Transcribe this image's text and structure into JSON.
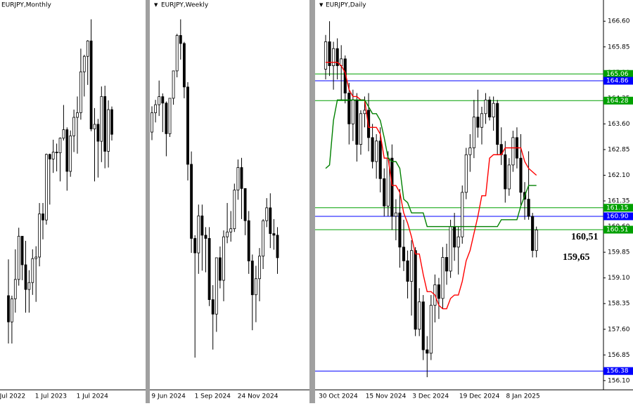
{
  "chart_data": [
    {
      "type": "candlestick",
      "title": "EURJPY,Monthly",
      "up_color": "#ffffff",
      "down_color": "#000000",
      "categories": [
        "1 Jul 2022",
        null,
        null,
        null,
        null,
        null,
        null,
        null,
        null,
        null,
        null,
        null,
        "1 Jul 2023",
        null,
        null,
        null,
        null,
        null,
        null,
        null,
        null,
        null,
        null,
        null,
        "1 Jul 2024",
        null,
        null,
        null,
        null,
        null,
        null
      ],
      "open": [
        139.6,
        136.2,
        139.2,
        141.7,
        147.3,
        143.6,
        140.4,
        141.3,
        144.4,
        144.6,
        150.2,
        149.4,
        157.9,
        157.3,
        158.2,
        158.1,
        160.0,
        161.1,
        155.7,
        160.3,
        162.7,
        163.3,
        168.6,
        170.6,
        172.6,
        161.2,
        161.8,
        159.6,
        165.4,
        158.3,
        163.7
      ],
      "high": [
        144.3,
        139.6,
        145.6,
        148.4,
        147.3,
        146.7,
        142.9,
        145.6,
        146.0,
        151.6,
        151.6,
        158.0,
        158.0,
        159.8,
        159.3,
        160.1,
        164.3,
        161.4,
        161.0,
        163.7,
        165.4,
        171.6,
        170.8,
        172.7,
        175.4,
        163.9,
        162.5,
        166.7,
        166.8,
        164.9,
        164.1
      ],
      "low": [
        133.4,
        133.4,
        137.4,
        140.9,
        141.6,
        137.4,
        137.4,
        139.7,
        138.8,
        143.4,
        146.9,
        148.8,
        151.4,
        155.5,
        155.7,
        154.4,
        159.7,
        153.2,
        155.0,
        158.2,
        158.0,
        162.4,
        165.4,
        166.9,
        160.9,
        154.4,
        154.9,
        156.9,
        156.1,
        156.2,
        159.7
      ],
      "close": [
        136.2,
        139.2,
        141.7,
        147.3,
        143.6,
        140.4,
        141.3,
        144.4,
        144.6,
        150.2,
        149.4,
        157.9,
        157.3,
        158.2,
        158.1,
        160.0,
        161.1,
        155.7,
        160.3,
        162.7,
        163.3,
        168.6,
        170.6,
        172.6,
        161.2,
        161.8,
        159.6,
        165.4,
        158.3,
        163.7,
        160.5
      ],
      "ylim": [
        127.4,
        177.9
      ]
    },
    {
      "type": "candlestick",
      "title": "EURJPY,Weekly",
      "up_color": "#ffffff",
      "down_color": "#000000",
      "categories": [
        null,
        null,
        null,
        null,
        "9 Jun 2024",
        null,
        null,
        null,
        null,
        null,
        null,
        null,
        null,
        null,
        null,
        null,
        "1 Sep 2024",
        null,
        null,
        null,
        null,
        null,
        null,
        null,
        null,
        null,
        null,
        null,
        "24 Nov 2024",
        null,
        null,
        null,
        null,
        null,
        null,
        null
      ],
      "open": [
        168.4,
        169.6,
        170.1,
        170.6,
        170.2,
        168.3,
        170.5,
        172.2,
        174.4,
        173.9,
        171.2,
        166.4,
        161.8,
        160.9,
        163.2,
        162.0,
        161.8,
        158.0,
        157.1,
        160.6,
        159.2,
        161.9,
        162.2,
        162.4,
        164.8,
        166.2,
        164.9,
        162.9,
        160.4,
        158.3,
        159.3,
        160.7,
        162.9,
        163.7,
        162.1,
        162.0
      ],
      "high": [
        170.0,
        170.4,
        171.6,
        170.8,
        170.3,
        170.5,
        172.2,
        174.5,
        175.4,
        174.0,
        171.5,
        167.2,
        162.0,
        163.9,
        163.9,
        162.5,
        162.5,
        158.9,
        160.6,
        161.3,
        162.3,
        164.0,
        163.5,
        165.2,
        166.7,
        166.8,
        164.9,
        163.5,
        160.8,
        160.1,
        161.2,
        163.0,
        164.3,
        164.6,
        163.0,
        162.5
      ],
      "low": [
        167.9,
        169.0,
        169.4,
        168.4,
        166.9,
        168.1,
        170.1,
        171.8,
        172.9,
        170.5,
        165.4,
        160.9,
        154.4,
        159.6,
        159.8,
        159.7,
        157.6,
        154.9,
        156.0,
        158.7,
        157.9,
        161.5,
        161.6,
        162.2,
        164.2,
        163.0,
        162.0,
        159.6,
        156.1,
        156.6,
        157.9,
        159.9,
        162.5,
        161.2,
        161.1,
        159.6
      ],
      "close": [
        169.6,
        170.1,
        170.6,
        170.2,
        168.3,
        170.5,
        172.2,
        174.4,
        173.9,
        171.2,
        166.4,
        161.8,
        160.9,
        163.2,
        162.0,
        161.8,
        158.0,
        157.1,
        160.6,
        159.2,
        161.9,
        162.2,
        162.4,
        164.8,
        166.2,
        164.9,
        162.9,
        160.4,
        158.3,
        159.3,
        160.7,
        162.9,
        163.7,
        162.1,
        162.0,
        160.6
      ],
      "ylim": [
        152.4,
        176.6
      ]
    },
    {
      "type": "candlestick",
      "title": "EURJPY,Daily",
      "up_color": "#ffffff",
      "down_color": "#000000",
      "categories": [
        null,
        null,
        "30 Oct 2024",
        null,
        null,
        null,
        null,
        null,
        null,
        null,
        null,
        null,
        null,
        null,
        "15 Nov 2024",
        null,
        null,
        null,
        null,
        null,
        null,
        null,
        null,
        null,
        null,
        null,
        "3 Dec 2024",
        null,
        null,
        null,
        null,
        null,
        null,
        null,
        null,
        null,
        null,
        null,
        "19 Dec 2024",
        null,
        null,
        null,
        null,
        null,
        null,
        null,
        null,
        null,
        null,
        null,
        "8 Jan 2025",
        null,
        null,
        null,
        null
      ],
      "open": [
        165.2,
        166.0,
        165.3,
        165.8,
        165.3,
        165.5,
        164.5,
        163.6,
        164.3,
        163.0,
        163.9,
        164.0,
        163.2,
        162.5,
        163.1,
        162.0,
        161.2,
        162.6,
        160.9,
        161.0,
        160.0,
        159.6,
        159.0,
        159.9,
        157.6,
        158.4,
        157.0,
        156.9,
        158.3,
        158.9,
        158.5,
        159.7,
        159.3,
        160.6,
        160.0,
        160.3,
        161.6,
        162.7,
        162.9,
        163.8,
        163.5,
        163.9,
        164.3,
        163.8,
        164.2,
        163.0,
        162.7,
        161.7,
        162.4,
        163.2,
        162.6,
        161.6,
        161.4,
        160.9,
        159.9
      ],
      "high": [
        166.2,
        166.6,
        166.0,
        166.1,
        165.9,
        165.6,
        164.8,
        164.6,
        164.5,
        164.0,
        164.4,
        164.5,
        163.6,
        163.3,
        163.5,
        162.3,
        162.8,
        163.0,
        161.4,
        161.7,
        160.8,
        159.9,
        160.2,
        160.0,
        158.8,
        158.6,
        157.4,
        158.6,
        159.2,
        159.1,
        160.0,
        160.1,
        160.8,
        161.0,
        160.6,
        161.8,
        162.9,
        163.3,
        164.3,
        164.6,
        164.1,
        164.5,
        164.4,
        164.4,
        164.3,
        163.5,
        163.1,
        162.6,
        163.4,
        163.5,
        163.3,
        161.9,
        162.8,
        161.0,
        160.6
      ],
      "low": [
        164.9,
        165.0,
        164.6,
        164.9,
        164.3,
        164.2,
        163.0,
        163.1,
        162.5,
        162.7,
        163.5,
        162.8,
        162.3,
        162.0,
        161.6,
        160.9,
        160.9,
        160.5,
        160.2,
        159.4,
        159.3,
        158.5,
        158.0,
        157.4,
        157.4,
        156.7,
        156.2,
        156.7,
        157.8,
        157.9,
        158.2,
        158.9,
        159.1,
        159.6,
        159.2,
        160.1,
        161.4,
        162.2,
        162.6,
        163.2,
        163.0,
        163.6,
        163.7,
        163.4,
        162.7,
        162.4,
        161.3,
        161.5,
        162.2,
        162.3,
        161.2,
        160.8,
        160.8,
        159.7,
        159.7
      ],
      "close": [
        166.0,
        165.3,
        165.8,
        165.3,
        165.5,
        164.5,
        163.6,
        164.3,
        163.0,
        163.9,
        164.0,
        163.2,
        162.5,
        163.1,
        162.0,
        161.2,
        162.6,
        160.9,
        161.0,
        160.0,
        159.6,
        159.0,
        159.9,
        157.6,
        158.4,
        157.0,
        156.9,
        158.3,
        158.9,
        158.5,
        159.7,
        159.3,
        160.6,
        160.0,
        160.3,
        161.6,
        162.7,
        162.9,
        163.8,
        163.5,
        163.9,
        164.3,
        163.8,
        164.2,
        163.0,
        162.7,
        161.7,
        162.4,
        163.2,
        162.6,
        161.6,
        161.4,
        160.9,
        159.9,
        160.5
      ],
      "lines": [
        {
          "color": "#ff0000",
          "values": [
            165.4,
            165.4,
            165.4,
            165.4,
            165.3,
            165.1,
            164.6,
            164.4,
            164.4,
            164.3,
            164.3,
            163.5,
            163.5,
            163.5,
            163.3,
            162.6,
            162.6,
            161.8,
            161.8,
            161.6,
            161.0,
            160.7,
            160.3,
            159.8,
            159.8,
            159.2,
            158.7,
            158.7,
            158.6,
            158.3,
            158.2,
            158.2,
            158.5,
            158.6,
            158.6,
            159.0,
            159.6,
            159.9,
            160.4,
            160.9,
            161.5,
            161.5,
            162.6,
            162.7,
            162.7,
            162.7,
            162.9,
            162.9,
            162.9,
            162.9,
            162.9,
            162.5,
            162.3,
            162.2,
            162.1
          ]
        },
        {
          "color": "#008000",
          "values": [
            162.3,
            162.4,
            163.7,
            164.3,
            164.3,
            164.3,
            164.3,
            164.3,
            164.3,
            164.3,
            164.3,
            164.1,
            163.9,
            163.9,
            163.7,
            163.2,
            162.6,
            162.5,
            162.5,
            162.3,
            161.4,
            161.3,
            161.0,
            161.0,
            161.0,
            161.0,
            160.6,
            160.6,
            160.6,
            160.6,
            160.6,
            160.6,
            160.6,
            160.6,
            160.6,
            160.6,
            160.6,
            160.6,
            160.6,
            160.6,
            160.6,
            160.6,
            160.6,
            160.6,
            160.6,
            160.8,
            160.8,
            160.8,
            160.8,
            160.8,
            161.2,
            161.5,
            161.8,
            161.8,
            161.8
          ]
        }
      ],
      "ylim": [
        155.83,
        167.22
      ],
      "yticks": [
        {
          "value": 166.6,
          "label": "166.60"
        },
        165.85,
        {
          "value": 165.1,
          "label": "165.10"
        },
        164.35,
        {
          "value": 163.6,
          "label": "163.60"
        },
        162.85,
        {
          "value": 162.1,
          "label": "162.10"
        },
        161.35,
        {
          "value": 160.6,
          "label": "160.60"
        },
        159.85,
        {
          "value": 159.1,
          "label": "159.10"
        },
        158.35,
        {
          "value": 157.6,
          "label": "157.60"
        },
        156.85,
        {
          "value": 156.1,
          "label": "156.10"
        }
      ],
      "levels": [
        {
          "value": 165.06,
          "color": "#00a000"
        },
        {
          "value": 164.86,
          "color": "#0000ff"
        },
        {
          "value": 164.28,
          "color": "#00a000"
        },
        {
          "value": 161.15,
          "color": "#00a000"
        },
        {
          "value": 160.9,
          "label": "160.90",
          "color": "#0000ff"
        },
        {
          "value": 160.51,
          "color": "#00a000"
        },
        {
          "value": 156.38,
          "color": "#0000ff"
        }
      ],
      "annotations": [
        "160,51",
        "159,65"
      ]
    }
  ]
}
